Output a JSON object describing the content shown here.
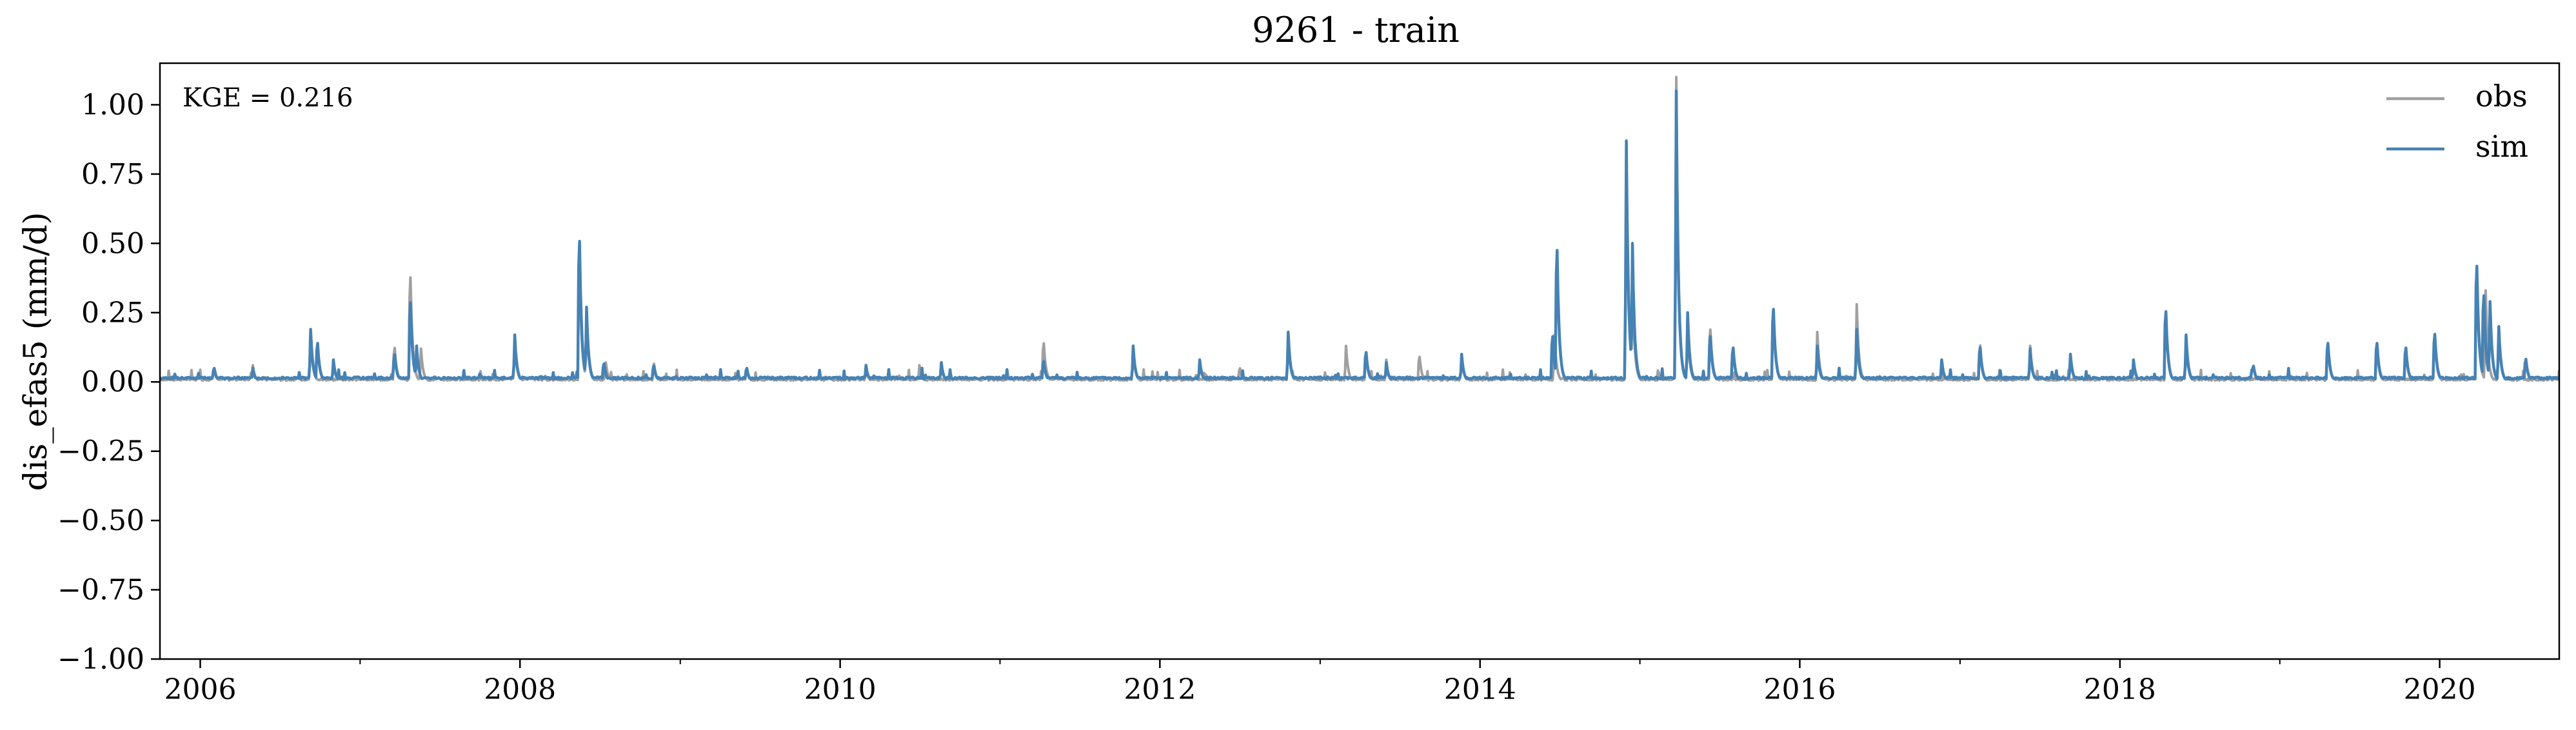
{
  "chart_data": {
    "type": "line",
    "title": "9261 - train",
    "xlabel": "",
    "ylabel": "dis_efas5 (mm/d)",
    "annotation": "KGE = 0.216",
    "xlim": [
      "2005-10-01",
      "2020-09-30"
    ],
    "ylim": [
      -1.0,
      1.15
    ],
    "x_ticks": [
      {
        "date": "2006-01-01",
        "label": "2006"
      },
      {
        "date": "2008-01-01",
        "label": "2008"
      },
      {
        "date": "2010-01-01",
        "label": "2010"
      },
      {
        "date": "2012-01-01",
        "label": "2012"
      },
      {
        "date": "2014-01-01",
        "label": "2014"
      },
      {
        "date": "2016-01-01",
        "label": "2016"
      },
      {
        "date": "2018-01-01",
        "label": "2018"
      },
      {
        "date": "2020-01-01",
        "label": "2020"
      }
    ],
    "y_ticks": [
      {
        "value": 1.0,
        "label": "1.00"
      },
      {
        "value": 0.75,
        "label": "0.75"
      },
      {
        "value": 0.5,
        "label": "0.50"
      },
      {
        "value": 0.25,
        "label": "0.25"
      },
      {
        "value": 0.0,
        "label": "0.00"
      },
      {
        "value": -0.25,
        "label": "−0.25"
      },
      {
        "value": -0.5,
        "label": "−0.50"
      },
      {
        "value": -0.75,
        "label": "−0.75"
      },
      {
        "value": -1.0,
        "label": "−1.00"
      }
    ],
    "grid": false,
    "legend": "top-right",
    "series": [
      {
        "name": "obs",
        "color": "#a0a0a0",
        "baseline": 0.005,
        "peaks": [
          [
            "2006-02-01",
            0.05
          ],
          [
            "2006-05-01",
            0.06
          ],
          [
            "2006-09-10",
            0.17
          ],
          [
            "2007-03-20",
            0.15
          ],
          [
            "2007-04-25",
            0.46
          ],
          [
            "2007-05-20",
            0.12
          ],
          [
            "2007-12-20",
            0.15
          ],
          [
            "2008-05-15",
            0.52
          ],
          [
            "2008-06-01",
            0.25
          ],
          [
            "2008-07-15",
            0.07
          ],
          [
            "2008-11-01",
            0.08
          ],
          [
            "2009-06-01",
            0.05
          ],
          [
            "2010-03-01",
            0.05
          ],
          [
            "2010-07-01",
            0.06
          ],
          [
            "2011-04-10",
            0.17
          ],
          [
            "2011-11-01",
            0.12
          ],
          [
            "2012-07-01",
            0.06
          ],
          [
            "2012-10-20",
            0.17
          ],
          [
            "2013-03-01",
            0.13
          ],
          [
            "2013-04-15",
            0.12
          ],
          [
            "2013-06-01",
            0.08
          ],
          [
            "2013-08-15",
            0.11
          ],
          [
            "2013-11-20",
            0.1
          ],
          [
            "2014-06-20",
            0.17
          ],
          [
            "2014-12-01",
            0.86
          ],
          [
            "2014-12-15",
            0.36
          ],
          [
            "2015-03-25",
            1.1
          ],
          [
            "2015-04-20",
            0.2
          ],
          [
            "2015-06-10",
            0.23
          ],
          [
            "2015-11-01",
            0.3
          ],
          [
            "2016-02-10",
            0.18
          ],
          [
            "2016-05-10",
            0.28
          ],
          [
            "2017-02-15",
            0.16
          ],
          [
            "2017-06-10",
            0.13
          ],
          [
            "2018-04-15",
            0.3
          ],
          [
            "2018-06-01",
            0.15
          ],
          [
            "2019-04-20",
            0.16
          ],
          [
            "2019-08-10",
            0.15
          ],
          [
            "2019-12-20",
            0.2
          ],
          [
            "2020-03-25",
            0.5
          ],
          [
            "2020-04-15",
            0.33
          ],
          [
            "2020-05-15",
            0.2
          ]
        ]
      },
      {
        "name": "sim",
        "color": "#4682b4",
        "baseline": 0.01,
        "peaks": [
          [
            "2006-02-01",
            0.06
          ],
          [
            "2006-05-01",
            0.05
          ],
          [
            "2006-09-10",
            0.19
          ],
          [
            "2006-09-25",
            0.17
          ],
          [
            "2006-11-01",
            0.08
          ],
          [
            "2007-03-20",
            0.12
          ],
          [
            "2007-04-25",
            0.35
          ],
          [
            "2007-05-10",
            0.13
          ],
          [
            "2007-12-20",
            0.17
          ],
          [
            "2008-05-15",
            0.62
          ],
          [
            "2008-06-01",
            0.27
          ],
          [
            "2008-07-10",
            0.08
          ],
          [
            "2008-11-01",
            0.07
          ],
          [
            "2009-06-01",
            0.06
          ],
          [
            "2010-03-01",
            0.06
          ],
          [
            "2010-08-20",
            0.07
          ],
          [
            "2011-04-10",
            0.09
          ],
          [
            "2011-11-01",
            0.13
          ],
          [
            "2012-04-01",
            0.08
          ],
          [
            "2012-10-20",
            0.18
          ],
          [
            "2013-04-15",
            0.13
          ],
          [
            "2013-06-01",
            0.07
          ],
          [
            "2013-11-20",
            0.1
          ],
          [
            "2014-06-15",
            0.2
          ],
          [
            "2014-06-25",
            0.58
          ],
          [
            "2014-12-01",
            0.87
          ],
          [
            "2014-12-15",
            0.5
          ],
          [
            "2015-03-25",
            1.05
          ],
          [
            "2015-04-20",
            0.25
          ],
          [
            "2015-06-10",
            0.2
          ],
          [
            "2015-08-01",
            0.15
          ],
          [
            "2015-11-01",
            0.32
          ],
          [
            "2016-02-10",
            0.13
          ],
          [
            "2016-05-10",
            0.19
          ],
          [
            "2016-11-20",
            0.08
          ],
          [
            "2017-02-15",
            0.15
          ],
          [
            "2017-06-10",
            0.12
          ],
          [
            "2017-09-10",
            0.1
          ],
          [
            "2018-02-01",
            0.08
          ],
          [
            "2018-04-15",
            0.31
          ],
          [
            "2018-06-01",
            0.17
          ],
          [
            "2018-11-01",
            0.07
          ],
          [
            "2019-04-20",
            0.17
          ],
          [
            "2019-08-10",
            0.17
          ],
          [
            "2019-10-15",
            0.15
          ],
          [
            "2019-12-20",
            0.21
          ],
          [
            "2020-03-25",
            0.51
          ],
          [
            "2020-04-10",
            0.38
          ],
          [
            "2020-04-25",
            0.29
          ],
          [
            "2020-05-15",
            0.2
          ],
          [
            "2020-07-15",
            0.1
          ]
        ]
      }
    ]
  }
}
